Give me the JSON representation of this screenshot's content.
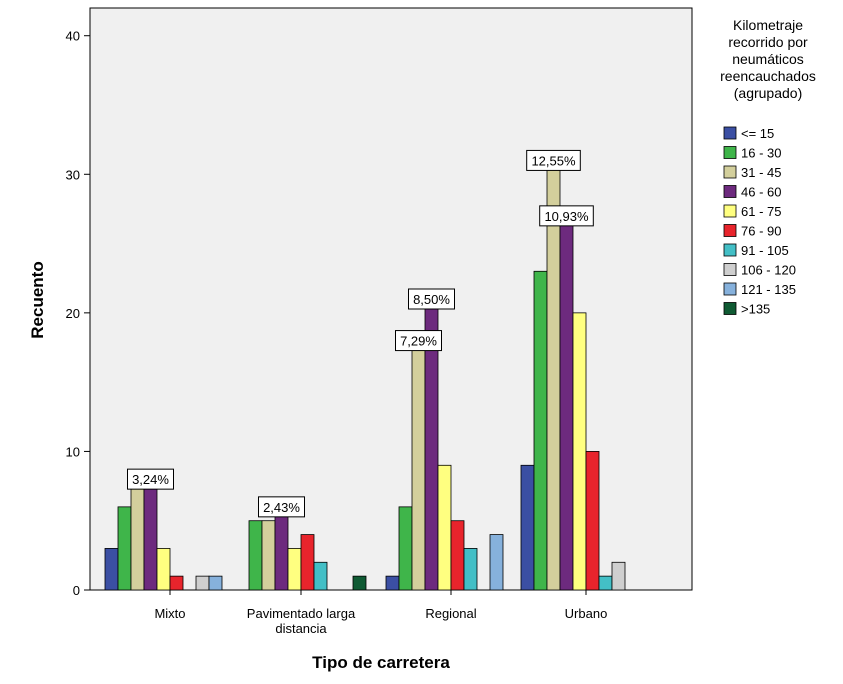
{
  "chart_data": {
    "type": "bar",
    "xlabel": "Tipo de carretera",
    "ylabel": "Recuento",
    "ylim": [
      0,
      42
    ],
    "yticks": [
      0,
      10,
      20,
      30,
      40
    ],
    "grid": false,
    "legend_position": "right",
    "legend_title": [
      "Kilometraje",
      "recorrido por",
      "neumáticos",
      "reencauchados",
      "(agrupado)"
    ],
    "categories": [
      [
        "Mixto"
      ],
      [
        "Pavimentado larga",
        "distancia"
      ],
      [
        "Regional"
      ],
      [
        "Urbano"
      ]
    ],
    "series": [
      {
        "name": "<= 15",
        "color": "#3b4fa3",
        "values": [
          3,
          0,
          1,
          9
        ]
      },
      {
        "name": "16 - 30",
        "color": "#3fb54a",
        "values": [
          6,
          5,
          6,
          23
        ]
      },
      {
        "name": "31 - 45",
        "color": "#d3cf9c",
        "values": [
          8,
          5,
          18,
          31
        ]
      },
      {
        "name": "46 - 60",
        "color": "#6d2a7e",
        "values": [
          8,
          6,
          21,
          27
        ]
      },
      {
        "name": "61 - 75",
        "color": "#ffff80",
        "values": [
          3,
          3,
          9,
          20
        ]
      },
      {
        "name": "76 - 90",
        "color": "#e8242c",
        "values": [
          1,
          4,
          5,
          10
        ]
      },
      {
        "name": "91 - 105",
        "color": "#43bfc6",
        "values": [
          0,
          2,
          3,
          1
        ]
      },
      {
        "name": "106 - 120",
        "color": "#cfcfcf",
        "values": [
          1,
          0,
          0,
          2
        ]
      },
      {
        "name": "121 - 135",
        "color": "#86b1dc",
        "values": [
          1,
          0,
          4,
          0
        ]
      },
      {
        "name": ">135",
        "color": "#0f5a33",
        "values": [
          0,
          1,
          0,
          0
        ]
      }
    ],
    "data_labels": [
      {
        "text": "3,24%",
        "category": 0,
        "series": 3
      },
      {
        "text": "2,43%",
        "category": 1,
        "series": 3
      },
      {
        "text": "7,29%",
        "category": 2,
        "series": 2
      },
      {
        "text": "8,50%",
        "category": 2,
        "series": 3
      },
      {
        "text": "12,55%",
        "category": 3,
        "series": 2
      },
      {
        "text": "10,93%",
        "category": 3,
        "series": 3
      }
    ]
  }
}
